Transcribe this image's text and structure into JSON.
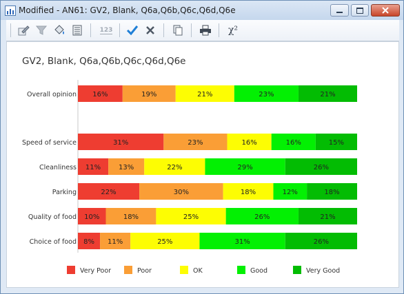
{
  "window": {
    "title": "Modified - AN61: GV2, Blank, Q6a,Q6b,Q6c,Q6d,Q6e",
    "icon": "bar-chart-icon"
  },
  "toolbar": {
    "buttons": [
      {
        "name": "edit-chart-icon"
      },
      {
        "name": "filter-icon"
      },
      {
        "name": "paint-bucket-icon"
      },
      {
        "name": "table-view-icon"
      },
      {
        "name": "value-format-icon",
        "label": "123"
      },
      {
        "name": "checkmark-icon"
      },
      {
        "name": "close-x-icon"
      },
      {
        "name": "copy-icon"
      },
      {
        "name": "print-icon"
      },
      {
        "name": "chi-squared-icon",
        "label": "χ²"
      }
    ]
  },
  "chart_data": {
    "type": "bar",
    "orientation": "horizontal",
    "stacked": "percent",
    "title": "GV2, Blank, Q6a,Q6b,Q6c,Q6d,Q6e",
    "legend_position": "bottom",
    "categories": [
      "Overall opinion",
      "",
      "Speed of service",
      "Cleanliness",
      "Parking",
      "Quality of food",
      "Choice of food"
    ],
    "series": [
      {
        "name": "Very Poor",
        "color": "#ee3d31",
        "values": [
          16,
          null,
          31,
          11,
          22,
          10,
          8
        ]
      },
      {
        "name": "Poor",
        "color": "#fa9e36",
        "values": [
          19,
          null,
          23,
          13,
          30,
          18,
          11
        ]
      },
      {
        "name": "OK",
        "color": "#fdfd03",
        "values": [
          21,
          null,
          16,
          22,
          18,
          25,
          25
        ]
      },
      {
        "name": "Good",
        "color": "#03f003",
        "values": [
          23,
          null,
          16,
          29,
          12,
          26,
          31
        ]
      },
      {
        "name": "Very Good",
        "color": "#03bc03",
        "values": [
          21,
          null,
          15,
          26,
          18,
          21,
          26
        ]
      }
    ],
    "data_labels": [
      [
        "16%",
        "19%",
        "21%",
        "23%",
        "21%"
      ],
      [],
      [
        "31%",
        "23%",
        "16%",
        "16%",
        "15%"
      ],
      [
        "11%",
        "13%",
        "22%",
        "29%",
        "26%"
      ],
      [
        "22%",
        "30%",
        "18%",
        "12%",
        "18%"
      ],
      [
        "10%",
        "18%",
        "25%",
        "26%",
        "21%"
      ],
      [
        "8%",
        "11%",
        "25%",
        "31%",
        "26%"
      ]
    ]
  }
}
